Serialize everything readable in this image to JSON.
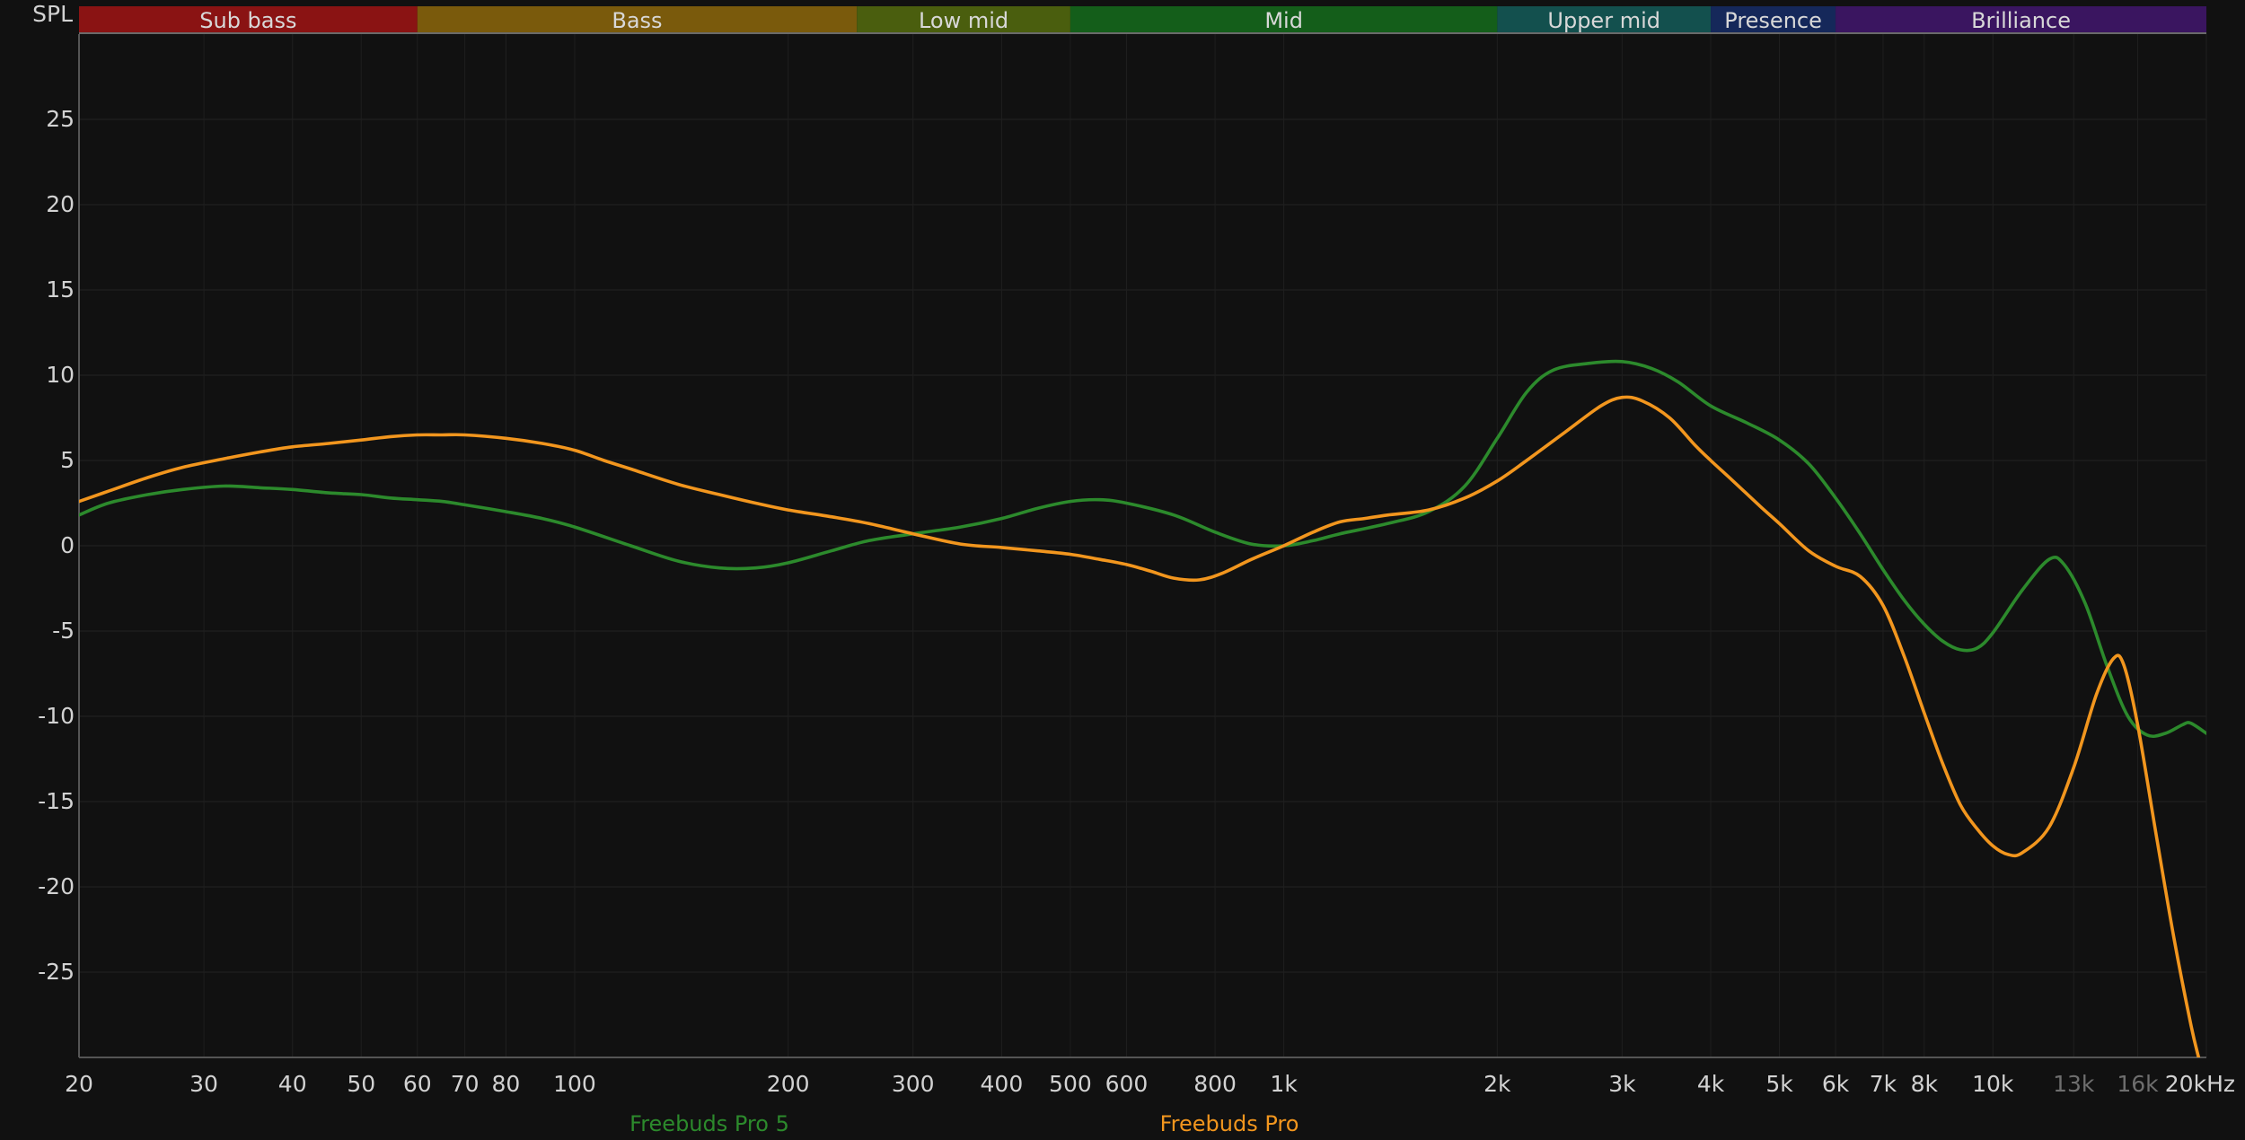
{
  "chart_data": {
    "type": "line",
    "ylabel": "SPL",
    "x_scale": "log",
    "x_range_hz": [
      20,
      20000
    ],
    "ylim": [
      -30,
      30
    ],
    "grid": true,
    "y_ticks": [
      25,
      20,
      15,
      10,
      5,
      0,
      -5,
      -10,
      -15,
      -20,
      -25
    ],
    "x_ticks": [
      {
        "hz": 20,
        "label": "20"
      },
      {
        "hz": 30,
        "label": "30"
      },
      {
        "hz": 40,
        "label": "40"
      },
      {
        "hz": 50,
        "label": "50"
      },
      {
        "hz": 60,
        "label": "60"
      },
      {
        "hz": 70,
        "label": "70"
      },
      {
        "hz": 80,
        "label": "80"
      },
      {
        "hz": 100,
        "label": "100"
      },
      {
        "hz": 200,
        "label": "200"
      },
      {
        "hz": 300,
        "label": "300"
      },
      {
        "hz": 400,
        "label": "400"
      },
      {
        "hz": 500,
        "label": "500"
      },
      {
        "hz": 600,
        "label": "600"
      },
      {
        "hz": 800,
        "label": "800"
      },
      {
        "hz": 1000,
        "label": "1k"
      },
      {
        "hz": 2000,
        "label": "2k"
      },
      {
        "hz": 3000,
        "label": "3k"
      },
      {
        "hz": 4000,
        "label": "4k"
      },
      {
        "hz": 5000,
        "label": "5k"
      },
      {
        "hz": 6000,
        "label": "6k"
      },
      {
        "hz": 7000,
        "label": "7k"
      },
      {
        "hz": 8000,
        "label": "8k"
      },
      {
        "hz": 10000,
        "label": "10k"
      },
      {
        "hz": 13000,
        "label": "13k",
        "dim": true
      },
      {
        "hz": 16000,
        "label": "16k",
        "dim": true
      },
      {
        "hz": 20000,
        "label": "20kHz"
      }
    ],
    "bands": [
      {
        "name": "Sub bass",
        "from": 20,
        "to": 60,
        "color": "#8a1313"
      },
      {
        "name": "Bass",
        "from": 60,
        "to": 250,
        "color": "#7a5a0c"
      },
      {
        "name": "Low mid",
        "from": 250,
        "to": 500,
        "color": "#4a5e0e"
      },
      {
        "name": "Mid",
        "from": 500,
        "to": 2000,
        "color": "#145e1a"
      },
      {
        "name": "Upper mid",
        "from": 2000,
        "to": 4000,
        "color": "#13504e"
      },
      {
        "name": "Presence",
        "from": 4000,
        "to": 6000,
        "color": "#15285a"
      },
      {
        "name": "Brilliance",
        "from": 6000,
        "to": 20000,
        "color": "#3a1560"
      }
    ],
    "series": [
      {
        "name": "Freebuds Pro 5",
        "color": "#2c8a2c",
        "points": [
          [
            20,
            1.8
          ],
          [
            22,
            2.5
          ],
          [
            25,
            3.0
          ],
          [
            28,
            3.3
          ],
          [
            32,
            3.5
          ],
          [
            36,
            3.4
          ],
          [
            40,
            3.3
          ],
          [
            45,
            3.1
          ],
          [
            50,
            3.0
          ],
          [
            55,
            2.8
          ],
          [
            60,
            2.7
          ],
          [
            65,
            2.6
          ],
          [
            70,
            2.4
          ],
          [
            80,
            2.0
          ],
          [
            90,
            1.6
          ],
          [
            100,
            1.1
          ],
          [
            120,
            0.0
          ],
          [
            140,
            -0.9
          ],
          [
            160,
            -1.3
          ],
          [
            180,
            -1.3
          ],
          [
            200,
            -1.0
          ],
          [
            230,
            -0.3
          ],
          [
            260,
            0.3
          ],
          [
            300,
            0.7
          ],
          [
            350,
            1.1
          ],
          [
            400,
            1.6
          ],
          [
            450,
            2.2
          ],
          [
            500,
            2.6
          ],
          [
            550,
            2.7
          ],
          [
            600,
            2.5
          ],
          [
            700,
            1.8
          ],
          [
            800,
            0.8
          ],
          [
            900,
            0.1
          ],
          [
            1000,
            0.0
          ],
          [
            1100,
            0.3
          ],
          [
            1200,
            0.7
          ],
          [
            1400,
            1.3
          ],
          [
            1600,
            2.0
          ],
          [
            1800,
            3.5
          ],
          [
            2000,
            6.3
          ],
          [
            2200,
            9.0
          ],
          [
            2400,
            10.3
          ],
          [
            2700,
            10.7
          ],
          [
            3000,
            10.8
          ],
          [
            3300,
            10.4
          ],
          [
            3600,
            9.6
          ],
          [
            4000,
            8.2
          ],
          [
            4500,
            7.2
          ],
          [
            5000,
            6.2
          ],
          [
            5500,
            4.8
          ],
          [
            6000,
            2.8
          ],
          [
            6500,
            0.7
          ],
          [
            7000,
            -1.4
          ],
          [
            7500,
            -3.2
          ],
          [
            8000,
            -4.6
          ],
          [
            8500,
            -5.6
          ],
          [
            9000,
            -6.1
          ],
          [
            9500,
            -6.0
          ],
          [
            10000,
            -5.1
          ],
          [
            11000,
            -2.6
          ],
          [
            12000,
            -0.8
          ],
          [
            12600,
            -1.1
          ],
          [
            13500,
            -3.4
          ],
          [
            14500,
            -7.1
          ],
          [
            15500,
            -10.0
          ],
          [
            16500,
            -11.1
          ],
          [
            17500,
            -11.0
          ],
          [
            18500,
            -10.5
          ],
          [
            19000,
            -10.4
          ],
          [
            20000,
            -11.0
          ]
        ]
      },
      {
        "name": "Freebuds Pro",
        "color": "#f2961e",
        "points": [
          [
            20,
            2.6
          ],
          [
            22,
            3.2
          ],
          [
            25,
            4.0
          ],
          [
            28,
            4.6
          ],
          [
            32,
            5.1
          ],
          [
            36,
            5.5
          ],
          [
            40,
            5.8
          ],
          [
            45,
            6.0
          ],
          [
            50,
            6.2
          ],
          [
            55,
            6.4
          ],
          [
            60,
            6.5
          ],
          [
            65,
            6.5
          ],
          [
            70,
            6.5
          ],
          [
            80,
            6.3
          ],
          [
            90,
            6.0
          ],
          [
            100,
            5.6
          ],
          [
            110,
            5.0
          ],
          [
            120,
            4.5
          ],
          [
            140,
            3.6
          ],
          [
            160,
            3.0
          ],
          [
            180,
            2.5
          ],
          [
            200,
            2.1
          ],
          [
            230,
            1.7
          ],
          [
            260,
            1.3
          ],
          [
            300,
            0.7
          ],
          [
            350,
            0.1
          ],
          [
            400,
            -0.1
          ],
          [
            450,
            -0.3
          ],
          [
            500,
            -0.5
          ],
          [
            550,
            -0.8
          ],
          [
            600,
            -1.1
          ],
          [
            650,
            -1.5
          ],
          [
            700,
            -1.9
          ],
          [
            760,
            -2.0
          ],
          [
            820,
            -1.6
          ],
          [
            900,
            -0.8
          ],
          [
            1000,
            0.0
          ],
          [
            1100,
            0.8
          ],
          [
            1200,
            1.4
          ],
          [
            1300,
            1.6
          ],
          [
            1400,
            1.8
          ],
          [
            1600,
            2.1
          ],
          [
            1800,
            2.8
          ],
          [
            2000,
            3.8
          ],
          [
            2200,
            5.0
          ],
          [
            2500,
            6.7
          ],
          [
            2800,
            8.2
          ],
          [
            3000,
            8.7
          ],
          [
            3200,
            8.5
          ],
          [
            3500,
            7.5
          ],
          [
            3800,
            5.9
          ],
          [
            4000,
            5.0
          ],
          [
            4300,
            3.8
          ],
          [
            4700,
            2.3
          ],
          [
            5000,
            1.3
          ],
          [
            5500,
            -0.3
          ],
          [
            6000,
            -1.2
          ],
          [
            6500,
            -1.8
          ],
          [
            7000,
            -3.5
          ],
          [
            7500,
            -6.5
          ],
          [
            8000,
            -9.8
          ],
          [
            8500,
            -12.8
          ],
          [
            9000,
            -15.2
          ],
          [
            9500,
            -16.6
          ],
          [
            10000,
            -17.6
          ],
          [
            10500,
            -18.1
          ],
          [
            11000,
            -18.0
          ],
          [
            12000,
            -16.5
          ],
          [
            13000,
            -13.0
          ],
          [
            14000,
            -8.7
          ],
          [
            14800,
            -6.6
          ],
          [
            15300,
            -7.0
          ],
          [
            16000,
            -10.5
          ],
          [
            17000,
            -17.0
          ],
          [
            18000,
            -23.0
          ],
          [
            19000,
            -28.0
          ],
          [
            19500,
            -30.0
          ]
        ]
      }
    ]
  }
}
